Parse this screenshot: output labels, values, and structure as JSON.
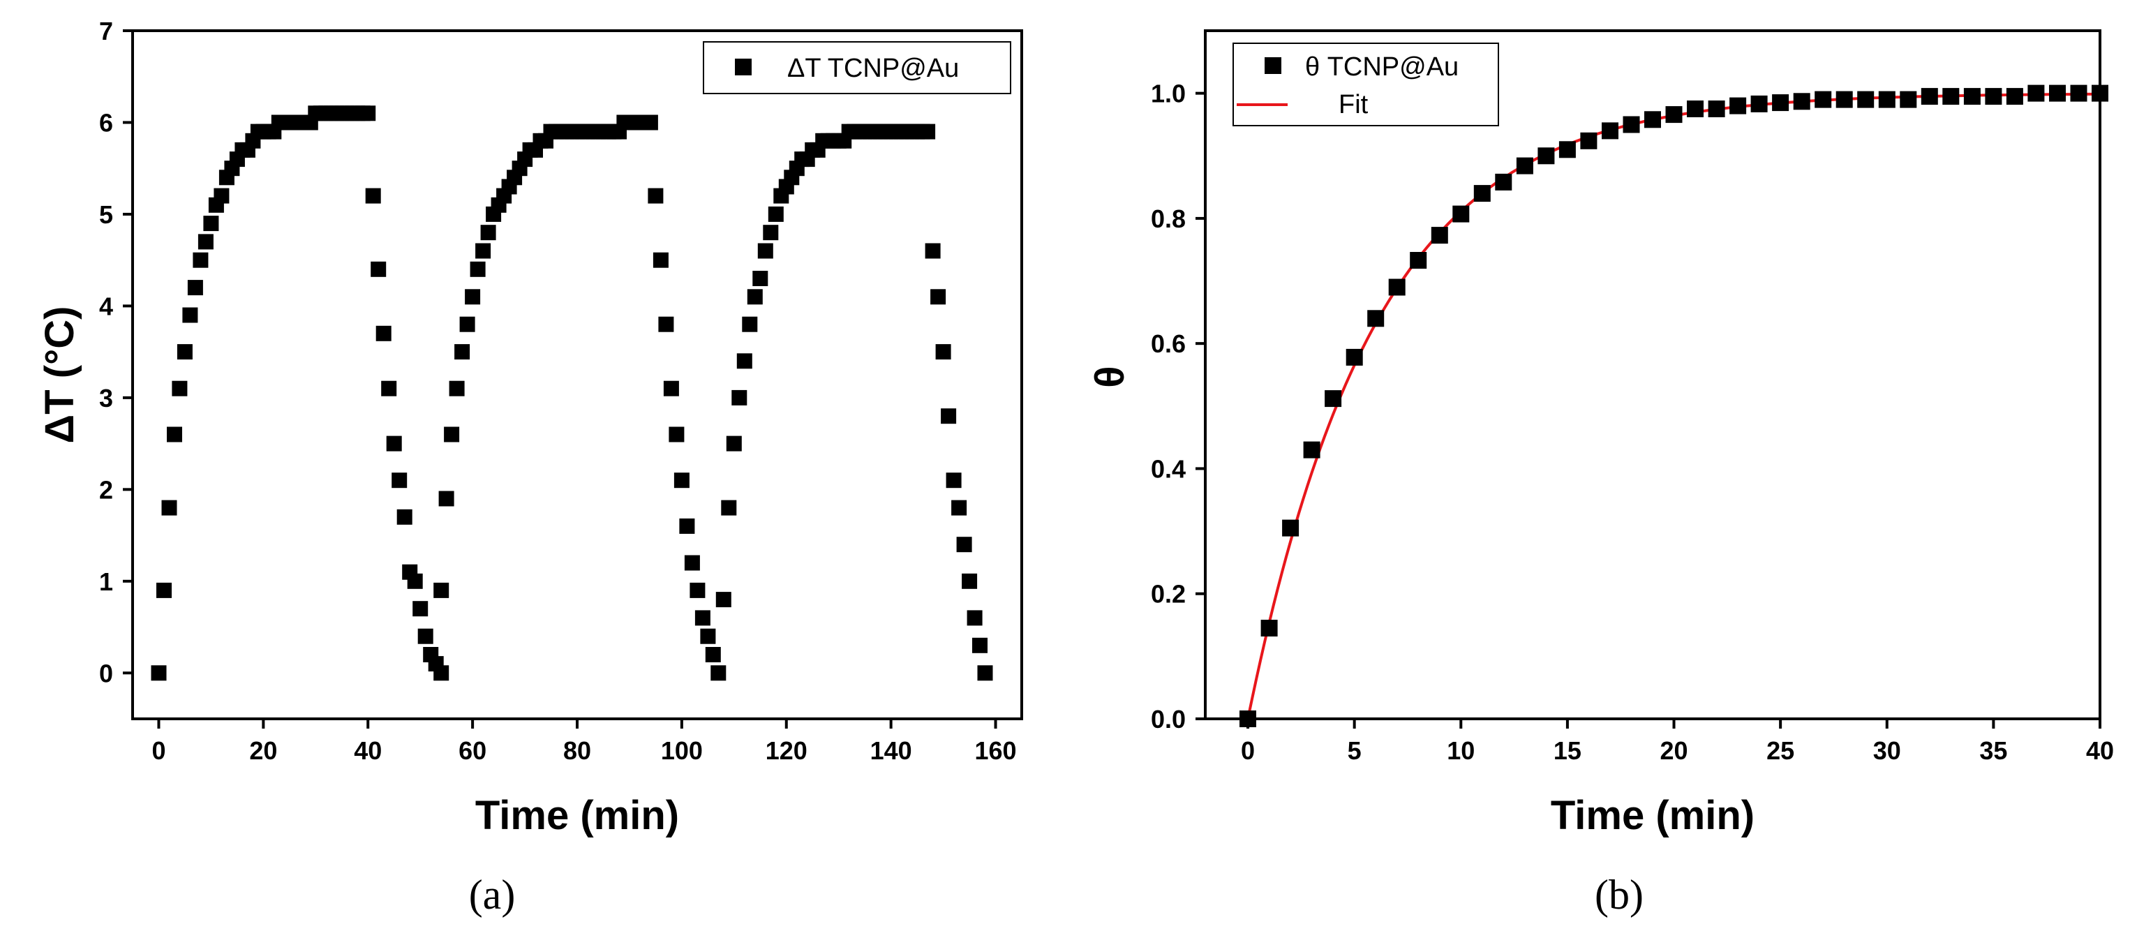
{
  "chart_data": [
    {
      "type": "scatter",
      "panel_label": "(a)",
      "xlabel": "Time (min)",
      "ylabel": "ΔT (°C)",
      "xlim": [
        -5,
        165
      ],
      "ylim": [
        -0.5,
        7
      ],
      "xticks": [
        0,
        20,
        40,
        60,
        80,
        100,
        120,
        140,
        160
      ],
      "yticks": [
        0,
        1,
        2,
        3,
        4,
        5,
        6,
        7
      ],
      "legend_position": "top-right",
      "series": [
        {
          "name": "ΔT TCNP@Au",
          "marker": "square",
          "color": "#000000",
          "x": [
            0,
            1,
            2,
            3,
            4,
            5,
            6,
            7,
            8,
            9,
            10,
            11,
            12,
            13,
            14,
            15,
            16,
            17,
            18,
            19,
            20,
            21,
            22,
            23,
            24,
            25,
            26,
            27,
            28,
            29,
            30,
            31,
            32,
            33,
            34,
            35,
            36,
            37,
            38,
            39,
            40,
            41,
            42,
            43,
            44,
            45,
            46,
            47,
            48,
            49,
            50,
            51,
            52,
            53,
            54,
            54,
            55,
            56,
            57,
            58,
            59,
            60,
            61,
            62,
            63,
            64,
            65,
            66,
            67,
            68,
            69,
            70,
            71,
            72,
            73,
            74,
            75,
            76,
            77,
            78,
            79,
            80,
            81,
            82,
            83,
            84,
            85,
            86,
            87,
            88,
            89,
            90,
            91,
            92,
            93,
            94,
            95,
            96,
            97,
            98,
            99,
            100,
            101,
            102,
            103,
            104,
            105,
            106,
            107,
            108,
            109,
            110,
            111,
            112,
            113,
            114,
            115,
            116,
            117,
            118,
            119,
            120,
            121,
            122,
            123,
            124,
            125,
            126,
            127,
            128,
            129,
            130,
            131,
            132,
            133,
            134,
            135,
            136,
            137,
            138,
            139,
            140,
            141,
            142,
            143,
            144,
            145,
            146,
            147,
            148,
            149,
            150,
            151,
            152,
            153,
            154,
            155,
            156,
            157,
            158
          ],
          "y": [
            0,
            0.9,
            1.8,
            2.6,
            3.1,
            3.5,
            3.9,
            4.2,
            4.5,
            4.7,
            4.9,
            5.1,
            5.2,
            5.4,
            5.5,
            5.6,
            5.7,
            5.7,
            5.8,
            5.9,
            5.9,
            5.9,
            5.9,
            6.0,
            6.0,
            6.0,
            6.0,
            6.0,
            6.0,
            6.0,
            6.1,
            6.1,
            6.1,
            6.1,
            6.1,
            6.1,
            6.1,
            6.1,
            6.1,
            6.1,
            6.1,
            5.2,
            4.4,
            3.7,
            3.1,
            2.5,
            2.1,
            1.7,
            1.1,
            1.0,
            0.7,
            0.4,
            0.2,
            0.1,
            0,
            0.9,
            1.9,
            2.6,
            3.1,
            3.5,
            3.8,
            4.1,
            4.4,
            4.6,
            4.8,
            5.0,
            5.1,
            5.2,
            5.3,
            5.4,
            5.5,
            5.6,
            5.7,
            5.7,
            5.8,
            5.8,
            5.9,
            5.9,
            5.9,
            5.9,
            5.9,
            5.9,
            5.9,
            5.9,
            5.9,
            5.9,
            5.9,
            5.9,
            5.9,
            5.9,
            6.0,
            6.0,
            6.0,
            6.0,
            6.0,
            6.0,
            5.2,
            4.5,
            3.8,
            3.1,
            2.6,
            2.1,
            1.6,
            1.2,
            0.9,
            0.6,
            0.4,
            0.2,
            0,
            0.8,
            1.8,
            2.5,
            3.0,
            3.4,
            3.8,
            4.1,
            4.3,
            4.6,
            4.8,
            5.0,
            5.2,
            5.3,
            5.4,
            5.5,
            5.6,
            5.6,
            5.7,
            5.7,
            5.8,
            5.8,
            5.8,
            5.8,
            5.8,
            5.9,
            5.9,
            5.9,
            5.9,
            5.9,
            5.9,
            5.9,
            5.9,
            5.9,
            5.9,
            5.9,
            5.9,
            5.9,
            5.9,
            5.9,
            5.9,
            4.6,
            4.1,
            3.5,
            2.8,
            2.1,
            1.8,
            1.4,
            1.0,
            0.6,
            0.3,
            0
          ]
        }
      ]
    },
    {
      "type": "scatter",
      "panel_label": "(b)",
      "xlabel": "Time (min)",
      "ylabel": "θ",
      "xlim": [
        -2,
        40
      ],
      "ylim": [
        0,
        1.1
      ],
      "xticks": [
        0,
        5,
        10,
        15,
        20,
        25,
        30,
        35,
        40
      ],
      "yticks": [
        0.0,
        0.2,
        0.4,
        0.6,
        0.8,
        1.0
      ],
      "ytick_labels": [
        "0.0",
        "0.2",
        "0.4",
        "0.6",
        "0.8",
        "1.0"
      ],
      "legend_position": "top-left",
      "series": [
        {
          "name": "θ TCNP@Au",
          "marker": "square",
          "color": "#000000",
          "x": [
            0,
            1,
            2,
            3,
            4,
            5,
            6,
            7,
            8,
            9,
            10,
            11,
            12,
            13,
            14,
            15,
            16,
            17,
            18,
            19,
            20,
            21,
            22,
            23,
            24,
            25,
            26,
            27,
            28,
            29,
            30,
            31,
            32,
            33,
            34,
            35,
            36,
            37,
            38,
            39,
            40
          ],
          "y": [
            0,
            0.145,
            0.305,
            0.43,
            0.512,
            0.578,
            0.64,
            0.69,
            0.733,
            0.773,
            0.807,
            0.84,
            0.858,
            0.884,
            0.9,
            0.91,
            0.924,
            0.94,
            0.95,
            0.958,
            0.966,
            0.975,
            0.975,
            0.98,
            0.983,
            0.985,
            0.987,
            0.99,
            0.99,
            0.99,
            0.99,
            0.99,
            0.995,
            0.995,
            0.995,
            0.995,
            0.995,
            1.0,
            1.0,
            1.0,
            1.0
          ]
        },
        {
          "name": "Fit",
          "kind": "line",
          "color": "#e8161b",
          "tau": 6.0,
          "x_range": [
            0,
            40
          ]
        }
      ]
    }
  ]
}
